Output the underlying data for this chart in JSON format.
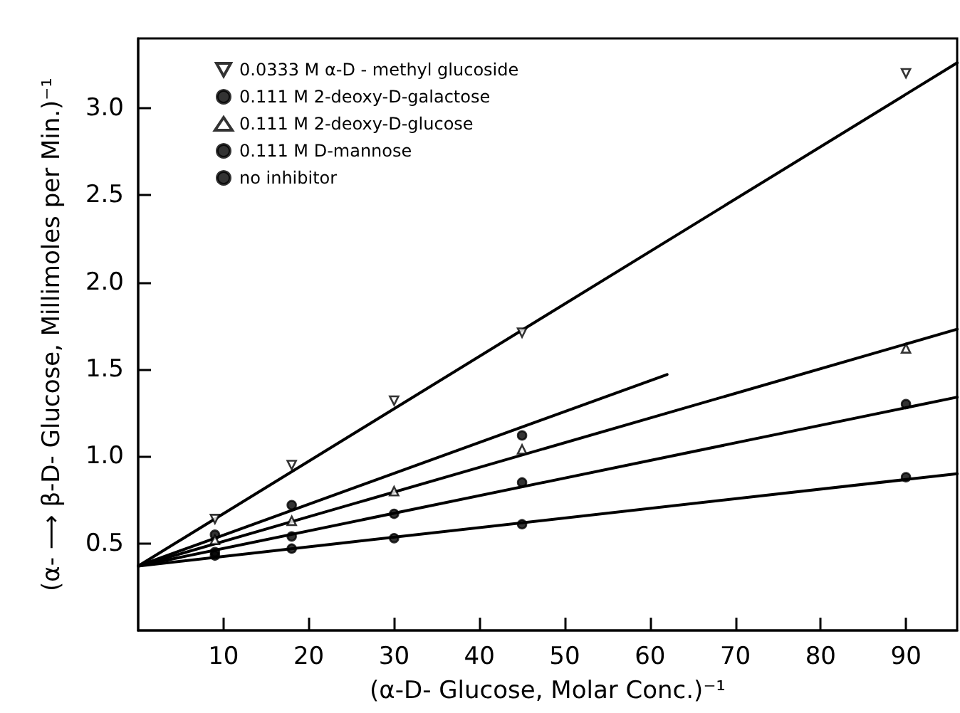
{
  "chart_data": {
    "type": "scatter",
    "xlabel": "(α-D- Glucose, Molar Conc.)⁻¹",
    "ylabel": "(α- ⟶ β-D- Glucose, Millimoles per Min.)⁻¹",
    "xlim": [
      0,
      96
    ],
    "xticks": [
      10,
      20,
      30,
      40,
      50,
      60,
      70,
      80,
      90
    ],
    "ylim": [
      0,
      3.4
    ],
    "yticks": [
      {
        "value": 0.5,
        "label": "0.5"
      },
      {
        "value": 1.0,
        "label": "1.0"
      },
      {
        "value": 1.5,
        "label": "1.5"
      },
      {
        "value": 2.0,
        "label": "2.0"
      },
      {
        "value": 2.5,
        "label": "2.5"
      },
      {
        "value": 3.0,
        "label": "3.0"
      }
    ],
    "grid": false,
    "legend": "top left",
    "series": [
      {
        "name": "0.0333 M α-D - methyl glucoside",
        "color": "#000000",
        "marker": "triangle-down",
        "x": [
          9,
          18,
          30,
          45,
          90
        ],
        "values": [
          0.64,
          0.95,
          1.32,
          1.71,
          3.2
        ]
      },
      {
        "name": "0.111 M 2-deoxy-D-galactose",
        "color": "#000000",
        "marker": "circle",
        "x": [
          9,
          18,
          45
        ],
        "values": [
          0.55,
          0.72,
          1.12
        ]
      },
      {
        "name": "0.111 M 2-deoxy-D-glucose",
        "color": "#000000",
        "marker": "triangle",
        "x": [
          9,
          18,
          30,
          45,
          90
        ],
        "values": [
          0.52,
          0.63,
          0.8,
          1.04,
          1.62
        ]
      },
      {
        "name": "0.111 M D-mannose",
        "color": "#000000",
        "marker": "circle",
        "x": [
          9,
          18,
          30,
          45,
          90
        ],
        "values": [
          0.45,
          0.54,
          0.67,
          0.85,
          1.3
        ]
      },
      {
        "name": "no inhibitor",
        "color": "#000000",
        "marker": "circle",
        "x": [
          9,
          18,
          30,
          45,
          90
        ],
        "values": [
          0.43,
          0.47,
          0.53,
          0.61,
          0.88
        ]
      },
      {
        "type": "line",
        "color": "#000000",
        "marker": "none",
        "x": [
          0,
          96
        ],
        "values": [
          0.37,
          3.26
        ]
      },
      {
        "type": "line",
        "color": "#000000",
        "marker": "none",
        "x": [
          0,
          62
        ],
        "values": [
          0.37,
          1.47
        ]
      },
      {
        "type": "line",
        "color": "#000000",
        "marker": "none",
        "x": [
          0,
          96
        ],
        "values": [
          0.37,
          1.73
        ]
      },
      {
        "type": "line",
        "color": "#000000",
        "marker": "none",
        "x": [
          0,
          96
        ],
        "values": [
          0.37,
          1.34
        ]
      },
      {
        "type": "line",
        "color": "#000000",
        "marker": "none",
        "x": [
          0,
          96
        ],
        "values": [
          0.37,
          0.9
        ]
      }
    ]
  }
}
